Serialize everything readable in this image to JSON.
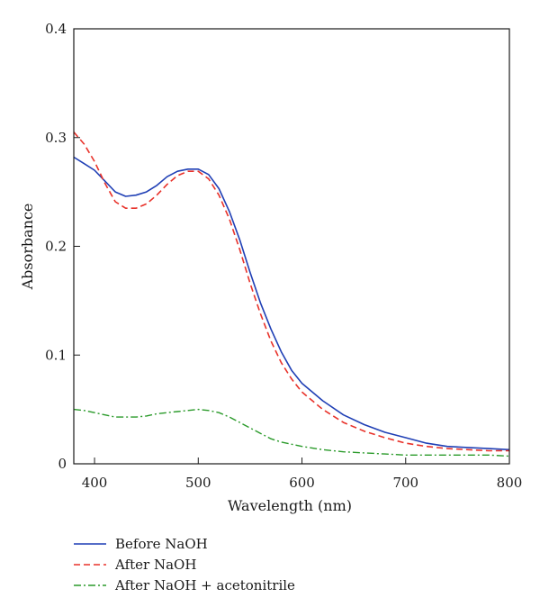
{
  "chart_data": {
    "type": "line",
    "title": "",
    "xlabel": "Wavelength (nm)",
    "ylabel": "Absorbance",
    "xlim": [
      380,
      800
    ],
    "ylim": [
      0,
      0.4
    ],
    "xticks": [
      400,
      500,
      600,
      700,
      800
    ],
    "yticks": [
      0,
      0.1,
      0.2,
      0.3,
      0.4
    ],
    "xtick_labels": [
      "400",
      "500",
      "600",
      "700",
      "800"
    ],
    "ytick_labels": [
      "0",
      "0.1",
      "0.2",
      "0.3",
      "0.4"
    ],
    "grid": false,
    "legend_position": "below",
    "series": [
      {
        "name": "Before NaOH",
        "color": "#1f3fb5",
        "style": "solid",
        "x": [
          380,
          390,
          400,
          410,
          420,
          430,
          440,
          450,
          460,
          470,
          480,
          490,
          500,
          510,
          520,
          530,
          540,
          550,
          560,
          570,
          580,
          590,
          600,
          620,
          640,
          660,
          680,
          700,
          720,
          740,
          760,
          780,
          800
        ],
        "y": [
          0.282,
          0.276,
          0.27,
          0.26,
          0.25,
          0.246,
          0.247,
          0.25,
          0.256,
          0.264,
          0.269,
          0.271,
          0.271,
          0.266,
          0.253,
          0.232,
          0.206,
          0.176,
          0.148,
          0.124,
          0.103,
          0.086,
          0.074,
          0.058,
          0.045,
          0.036,
          0.029,
          0.024,
          0.019,
          0.016,
          0.015,
          0.014,
          0.013
        ]
      },
      {
        "name": "After NaOH",
        "color": "#e8322a",
        "style": "dashed",
        "x": [
          380,
          390,
          400,
          410,
          420,
          430,
          440,
          450,
          460,
          470,
          480,
          490,
          500,
          510,
          520,
          530,
          540,
          550,
          560,
          570,
          580,
          590,
          600,
          620,
          640,
          660,
          680,
          700,
          720,
          740,
          760,
          780,
          800
        ],
        "y": [
          0.305,
          0.294,
          0.278,
          0.258,
          0.241,
          0.235,
          0.235,
          0.239,
          0.247,
          0.257,
          0.265,
          0.269,
          0.269,
          0.262,
          0.247,
          0.225,
          0.197,
          0.166,
          0.138,
          0.113,
          0.093,
          0.078,
          0.066,
          0.05,
          0.038,
          0.03,
          0.024,
          0.019,
          0.016,
          0.014,
          0.013,
          0.012,
          0.012
        ]
      },
      {
        "name": "After NaOH + acetonitrile",
        "color": "#2a9a2a",
        "style": "dashdot",
        "x": [
          380,
          390,
          400,
          410,
          420,
          430,
          440,
          450,
          460,
          470,
          480,
          490,
          500,
          510,
          520,
          530,
          540,
          550,
          560,
          570,
          580,
          590,
          600,
          620,
          640,
          660,
          680,
          700,
          720,
          740,
          760,
          780,
          800
        ],
        "y": [
          0.05,
          0.049,
          0.047,
          0.045,
          0.043,
          0.043,
          0.043,
          0.044,
          0.046,
          0.047,
          0.048,
          0.049,
          0.05,
          0.049,
          0.047,
          0.043,
          0.038,
          0.033,
          0.028,
          0.023,
          0.02,
          0.018,
          0.016,
          0.013,
          0.011,
          0.01,
          0.009,
          0.008,
          0.008,
          0.008,
          0.008,
          0.008,
          0.007
        ]
      }
    ]
  }
}
